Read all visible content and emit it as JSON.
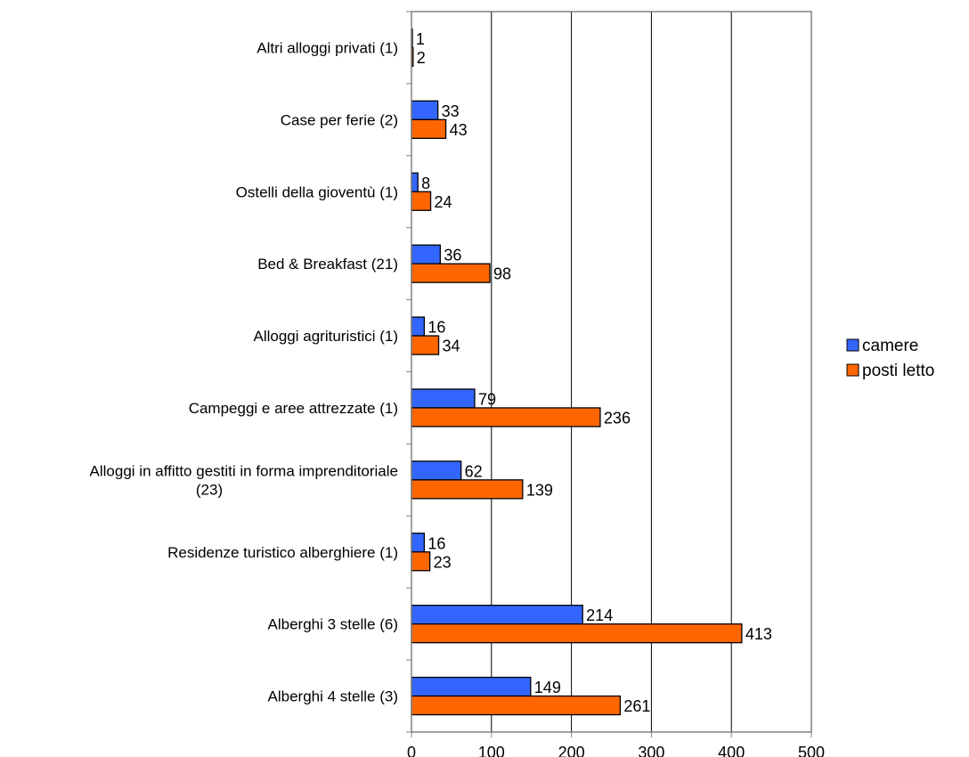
{
  "chart_data": {
    "type": "bar",
    "orientation": "horizontal",
    "categories": [
      [
        "Altri alloggi privati (1)"
      ],
      [
        "Case per ferie (2)"
      ],
      [
        "Ostelli della gioventù (1)"
      ],
      [
        "Bed & Breakfast (21)"
      ],
      [
        "Alloggi agrituristici (1)"
      ],
      [
        "Campeggi e aree attrezzate (1)"
      ],
      [
        "Alloggi in affitto gestiti in forma imprenditoriale",
        "(23)"
      ],
      [
        "Residenze turistico alberghiere (1)"
      ],
      [
        "Alberghi 3 stelle (6)"
      ],
      [
        "Alberghi 4 stelle (3)"
      ]
    ],
    "series": [
      {
        "name": "camere",
        "color": "#3366FF",
        "values": [
          1,
          33,
          8,
          36,
          16,
          79,
          62,
          16,
          214,
          149
        ]
      },
      {
        "name": "posti letto",
        "color": "#FF6600",
        "values": [
          2,
          43,
          24,
          98,
          34,
          236,
          139,
          23,
          413,
          261
        ]
      }
    ],
    "xlim": [
      0,
      500
    ],
    "xticks": [
      "0",
      "100",
      "200",
      "300",
      "400",
      "500"
    ],
    "grid": "vertical",
    "legend": "right",
    "title": "",
    "xlabel": "",
    "ylabel": ""
  }
}
